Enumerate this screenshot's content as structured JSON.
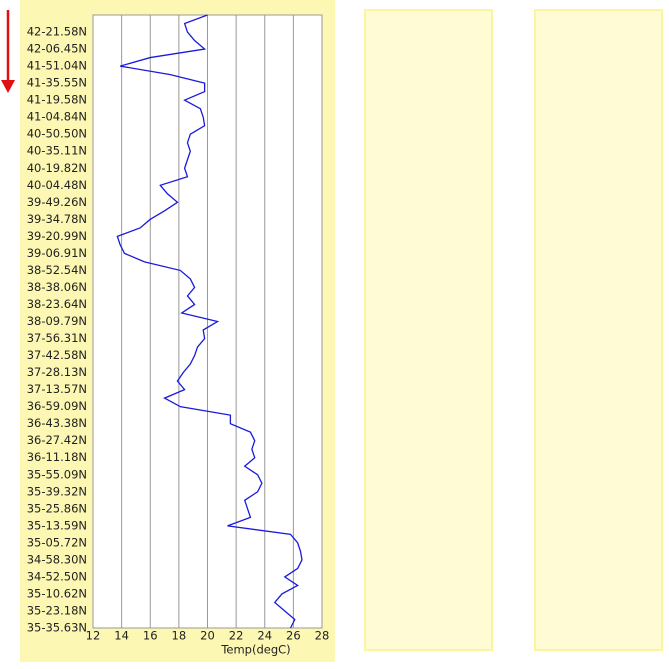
{
  "chart_data": {
    "type": "line",
    "orientation": "vertical",
    "x_label": "Temp(degC)",
    "xlim": [
      12,
      28
    ],
    "xticks": [
      12,
      14,
      16,
      18,
      20,
      22,
      24,
      26,
      28
    ],
    "grid": true,
    "color": "#1a1adc",
    "categories": [
      null,
      null,
      "42-21.58N",
      null,
      "42-06.45N",
      null,
      "41-51.04N",
      null,
      "41-35.55N",
      null,
      "41-19.58N",
      null,
      "41-04.84N",
      null,
      "40-50.50N",
      null,
      "40-35.11N",
      null,
      "40-19.82N",
      null,
      "40-04.48N",
      null,
      "39-49.26N",
      null,
      "39-34.78N",
      null,
      "39-20.99N",
      null,
      "39-06.91N",
      null,
      "38-52.54N",
      null,
      "38-38.06N",
      null,
      "38-23.64N",
      null,
      "38-09.79N",
      null,
      "37-56.31N",
      null,
      "37-42.58N",
      null,
      "37-28.13N",
      null,
      "37-13.57N",
      null,
      "36-59.09N",
      null,
      "36-43.38N",
      null,
      "36-27.42N",
      null,
      "36-11.18N",
      null,
      "35-55.09N",
      null,
      "35-39.32N",
      null,
      "35-25.86N",
      null,
      "35-13.59N",
      null,
      "35-05.72N",
      null,
      "34-58.30N",
      null,
      "34-52.50N",
      null,
      "35-10.62N",
      null,
      "35-23.18N",
      null,
      "35-35.63N"
    ],
    "values": [
      20.0,
      18.4,
      18.6,
      19.1,
      19.8,
      16.0,
      13.9,
      17.4,
      19.8,
      19.8,
      18.4,
      19.5,
      19.7,
      19.8,
      18.8,
      18.6,
      18.8,
      18.6,
      18.4,
      18.6,
      16.7,
      17.2,
      17.9,
      17.0,
      16.0,
      15.3,
      13.7,
      13.9,
      14.2,
      15.6,
      18.1,
      18.8,
      19.1,
      18.6,
      19.1,
      18.2,
      20.7,
      19.7,
      19.8,
      19.3,
      19.1,
      18.8,
      18.3,
      17.9,
      18.4,
      17.0,
      18.1,
      21.6,
      21.6,
      23.0,
      23.3,
      23.1,
      23.3,
      22.6,
      23.5,
      23.8,
      23.5,
      22.6,
      22.8,
      23.0,
      21.4,
      25.8,
      26.3,
      26.5,
      26.6,
      26.3,
      25.4,
      26.3,
      25.2,
      24.7,
      25.4,
      26.1,
      25.8
    ]
  }
}
